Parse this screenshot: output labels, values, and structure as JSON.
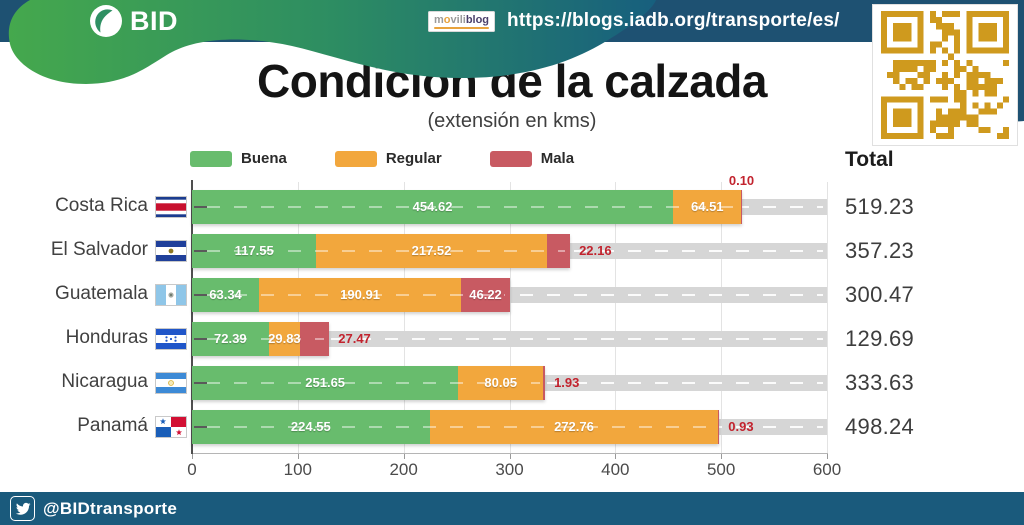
{
  "header": {
    "brand": "BID",
    "badge_m": "m",
    "badge_o": "o",
    "badge_vili": "vili",
    "badge_blog": "blog",
    "url": "https://blogs.iadb.org/transporte/es/"
  },
  "title": "Condición de la calzada",
  "subtitle": "(extensión en kms)",
  "total_label": "Total",
  "footer": {
    "handle": "@BIDtransporte"
  },
  "colors": {
    "buena": "#68BC6D",
    "regular": "#F2A73D",
    "mala": "#C85A62",
    "mala_text": "#C2232E",
    "road": "#D6D6D6",
    "header_blue": "#1E5172",
    "footer_blue": "#1A5A7C",
    "qr_orange": "#CF9A1E",
    "wave_green": "#45A84D",
    "wave_teal": "#175F7E"
  },
  "chart_data": {
    "type": "bar",
    "orientation": "horizontal",
    "stacked": true,
    "title": "Condición de la calzada",
    "subtitle": "(extensión en kms)",
    "xlabel": "extensión en kms",
    "xlim": [
      0,
      600
    ],
    "x_ticks": [
      0,
      100,
      200,
      300,
      400,
      500,
      600
    ],
    "grid": true,
    "legend_position": "top",
    "series_names": [
      "Buena",
      "Regular",
      "Mala"
    ],
    "series_colors": [
      "#68BC6D",
      "#F2A73D",
      "#C85A62"
    ],
    "rows": [
      {
        "country": "Costa Rica",
        "flag": "costa-rica",
        "buena": 454.62,
        "regular": 64.51,
        "mala": 0.1,
        "total": 519.23,
        "mala_label_position": "above"
      },
      {
        "country": "El Salvador",
        "flag": "el-salvador",
        "buena": 117.55,
        "regular": 217.52,
        "mala": 22.16,
        "total": 357.23,
        "mala_label_position": "right"
      },
      {
        "country": "Guatemala",
        "flag": "guatemala",
        "buena": 63.34,
        "regular": 190.91,
        "mala": 46.22,
        "total": 300.47,
        "mala_label_position": "inside"
      },
      {
        "country": "Honduras",
        "flag": "honduras",
        "buena": 72.39,
        "regular": 29.83,
        "mala": 27.47,
        "total": 129.69,
        "mala_label_position": "right"
      },
      {
        "country": "Nicaragua",
        "flag": "nicaragua",
        "buena": 251.65,
        "regular": 80.05,
        "mala": 1.93,
        "total": 333.63,
        "mala_label_position": "right"
      },
      {
        "country": "Panamá",
        "flag": "panama",
        "buena": 224.55,
        "regular": 272.76,
        "mala": 0.93,
        "total": 498.24,
        "mala_label_position": "right"
      }
    ]
  }
}
